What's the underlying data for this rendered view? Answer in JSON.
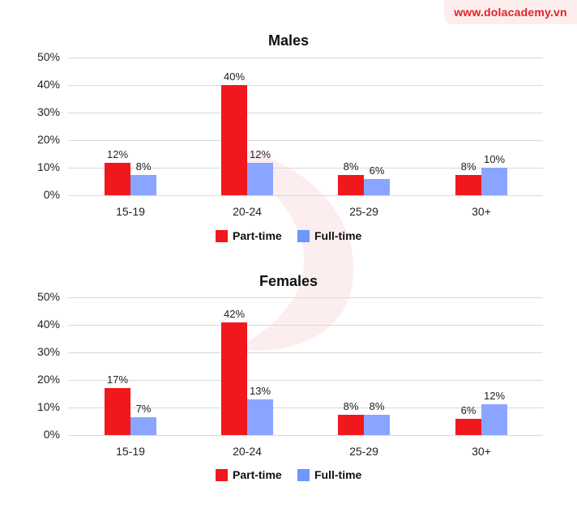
{
  "watermark": {
    "text": "www.dolacademy.vn"
  },
  "colors": {
    "part_time": "#f0181c",
    "full_time": "#8aa5ff",
    "brand": "#e3202a"
  },
  "legend": {
    "part_time": "Part-time",
    "full_time": "Full-time"
  },
  "yticks": [
    "50%",
    "40%",
    "30%",
    "20%",
    "10%",
    "0%"
  ],
  "chart_data": [
    {
      "type": "bar",
      "title": "Males",
      "categories": [
        "15-19",
        "20-24",
        "25-29",
        "30+"
      ],
      "series": [
        {
          "name": "Part-time",
          "values": [
            12,
            40,
            8,
            8
          ],
          "labels": [
            "12%",
            "40%",
            "8%",
            "8%"
          ]
        },
        {
          "name": "Full-time",
          "values": [
            8,
            12,
            6,
            10
          ],
          "labels": [
            "8%",
            "12%",
            "6%",
            "10%"
          ]
        }
      ],
      "xlabel": "",
      "ylabel": "",
      "ylim": [
        0,
        50
      ],
      "yticks": [
        "0%",
        "10%",
        "20%",
        "30%",
        "40%",
        "50%"
      ],
      "grid": true,
      "legend_position": "bottom"
    },
    {
      "type": "bar",
      "title": "Females",
      "categories": [
        "15-19",
        "20-24",
        "25-29",
        "30+"
      ],
      "series": [
        {
          "name": "Part-time",
          "values": [
            17,
            42,
            8,
            6
          ],
          "labels": [
            "17%",
            "42%",
            "8%",
            "6%"
          ]
        },
        {
          "name": "Full-time",
          "values": [
            7,
            13,
            8,
            12
          ],
          "labels": [
            "7%",
            "13%",
            "8%",
            "12%"
          ]
        }
      ],
      "xlabel": "",
      "ylabel": "",
      "ylim": [
        0,
        50
      ],
      "yticks": [
        "0%",
        "10%",
        "20%",
        "30%",
        "40%",
        "50%"
      ],
      "grid": true,
      "legend_position": "bottom"
    }
  ],
  "drawn_heights": {
    "males": {
      "pt": [
        11.8,
        40,
        7.4,
        7.4
      ],
      "ft": [
        7.4,
        11.8,
        5.9,
        10
      ]
    },
    "females": {
      "pt": [
        17,
        41,
        7.4,
        5.9
      ],
      "ft": [
        6.5,
        13,
        7.4,
        11.2
      ]
    }
  }
}
